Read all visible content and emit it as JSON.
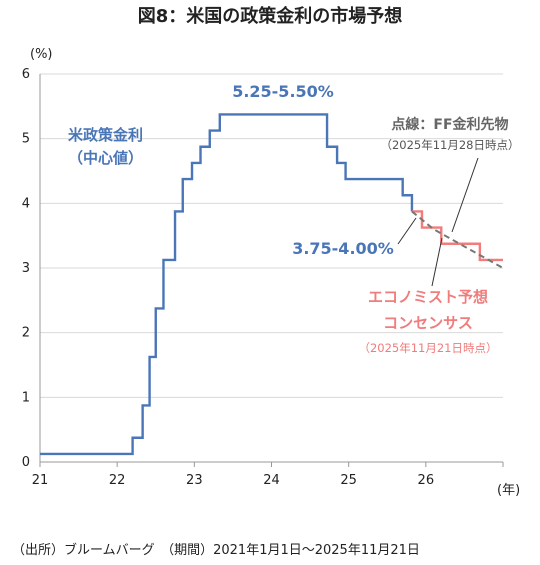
{
  "chart_data": {
    "type": "line",
    "title": "図8：米国の政策金利の市場予想",
    "ylabel": "(%)",
    "xlabel": "(年)",
    "ylim": [
      0,
      6
    ],
    "xlim": [
      2021,
      2027
    ],
    "y_ticks": [
      "0",
      "1",
      "2",
      "3",
      "4",
      "5",
      "6"
    ],
    "x_ticks": [
      "21",
      "22",
      "23",
      "24",
      "25",
      "26"
    ],
    "grid": true,
    "series": [
      {
        "name": "米政策金利（中心値）",
        "color": "#4a76b8",
        "style": "step",
        "x": [
          2021.0,
          2022.2,
          2022.33,
          2022.42,
          2022.5,
          2022.6,
          2022.75,
          2022.85,
          2022.97,
          2023.08,
          2023.2,
          2023.33,
          2023.55,
          2024.72,
          2024.85,
          2024.96,
          2025.7,
          2025.82
        ],
        "y": [
          0.125,
          0.375,
          0.875,
          1.625,
          2.375,
          3.125,
          3.875,
          4.375,
          4.625,
          4.875,
          5.125,
          5.375,
          5.375,
          4.875,
          4.625,
          4.375,
          4.125,
          3.875
        ]
      },
      {
        "name": "エコノミスト予想 コンセンサス",
        "color": "#f07c7c",
        "style": "step",
        "x": [
          2025.82,
          2025.95,
          2026.2,
          2026.7,
          2026.8,
          2027.0
        ],
        "y": [
          3.875,
          3.625,
          3.375,
          3.125,
          3.125,
          3.125
        ]
      },
      {
        "name": "点線：FF金利先物",
        "color": "#777777",
        "style": "dashed",
        "x": [
          2025.82,
          2026.1,
          2026.4,
          2026.7,
          2027.0
        ],
        "y": [
          3.875,
          3.6,
          3.4,
          3.2,
          3.0
        ]
      }
    ],
    "annotations": {
      "peak": "5.25-5.50%",
      "current": "3.75-4.00%",
      "blue_label_line1": "米政策金利",
      "blue_label_line2": "（中心値）",
      "futures_label": "点線：FF金利先物",
      "futures_date": "（2025年11月28日時点）",
      "consensus_line1": "エコノミスト予想",
      "consensus_line2": "コンセンサス",
      "consensus_date": "（2025年11月21日時点）"
    },
    "source": "（出所）ブルームバーグ　（期間）2021年1月1日～2025年11月21日"
  }
}
